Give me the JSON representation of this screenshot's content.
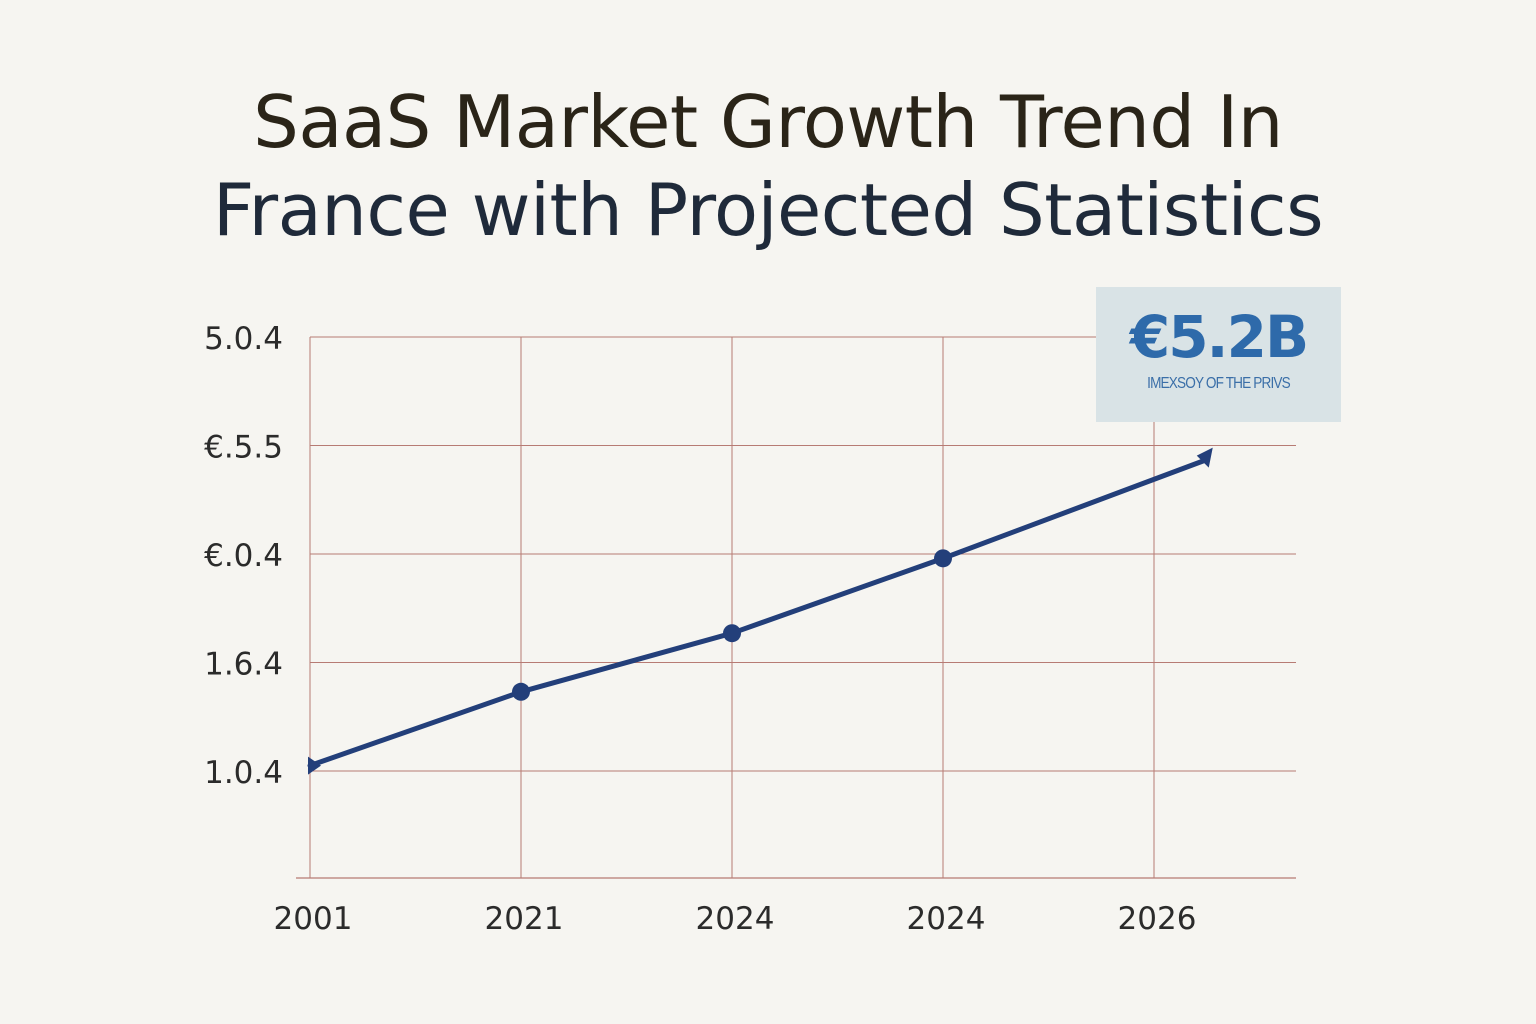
{
  "title": {
    "line1": "SaaS Market Growth Trend In",
    "line2": "France with Projected Statistics"
  },
  "callout": {
    "value": "€5.2B",
    "caption": "IMEXSOY OF THE PRIVS"
  },
  "chart_data": {
    "type": "line",
    "title": "SaaS Market Growth Trend In France with Projected Statistics",
    "xlabel": "",
    "ylabel": "",
    "grid": true,
    "x_tick_labels": [
      "2001",
      "2021",
      "2024",
      "2024",
      "2026"
    ],
    "y_tick_labels": [
      "1.0.4",
      "1.6.4",
      "€.0.4",
      "€.5.5",
      "5.0.4"
    ],
    "x_positions": [
      0,
      1,
      2,
      3,
      4
    ],
    "y_positions": [
      0,
      1,
      2,
      3,
      4
    ],
    "xlim": [
      0,
      4.68
    ],
    "ylim": [
      -1,
      4
    ],
    "series": [
      {
        "color": "#233f7a",
        "points": [
          {
            "x": 0.0,
            "y": 0.05
          },
          {
            "x": 1.0,
            "y": 0.73
          },
          {
            "x": 2.0,
            "y": 1.27
          },
          {
            "x": 3.0,
            "y": 1.96
          },
          {
            "x": 4.25,
            "y": 2.87
          }
        ]
      }
    ],
    "colors": {
      "grid": "#b77b74",
      "line": "#233f7a",
      "tick_text": "#2b2b2b"
    }
  }
}
